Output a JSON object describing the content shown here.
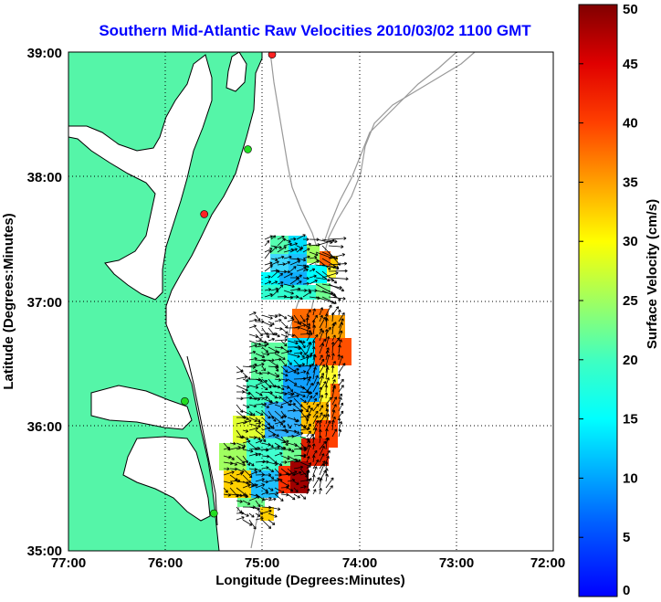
{
  "title": "Southern Mid-Atlantic Raw Velocities 2010/03/02 1100 GMT",
  "axes": {
    "xlabel": "Longitude (Degrees:Minutes)",
    "ylabel": "Latitude (Degrees:Minutes)",
    "x_ticks": [
      "77:00",
      "76:00",
      "75:00",
      "74:00",
      "73:00",
      "72:00"
    ],
    "y_ticks": [
      "39:00",
      "38:00",
      "37:00",
      "36:00",
      "35:00"
    ]
  },
  "colorbar": {
    "label": "Surface Velocity (cm/s)",
    "ticks": [
      "0",
      "5",
      "10",
      "15",
      "20",
      "25",
      "30",
      "35",
      "40",
      "45",
      "50"
    ],
    "min": 0,
    "max": 50,
    "colormap": "jet"
  },
  "colors": {
    "land": "#55f5a8",
    "coastline": "#000000",
    "bathymetry": "#999999",
    "grid": "#000000",
    "station_active": "#22dd22",
    "station_inactive": "#ff2222",
    "vectors": "#000000"
  },
  "chart_data": {
    "type": "map",
    "extent": {
      "lon": [
        -77.0,
        -72.0
      ],
      "lat": [
        35.0,
        39.0
      ]
    },
    "grid": true,
    "stations": [
      {
        "status": "inactive",
        "lon": -74.9,
        "lat": 38.98
      },
      {
        "status": "active",
        "lon": -75.15,
        "lat": 38.22
      },
      {
        "status": "inactive",
        "lon": -75.6,
        "lat": 37.7
      },
      {
        "status": "active",
        "lon": -75.8,
        "lat": 36.2
      },
      {
        "status": "active",
        "lon": -75.5,
        "lat": 35.3
      }
    ]
  }
}
